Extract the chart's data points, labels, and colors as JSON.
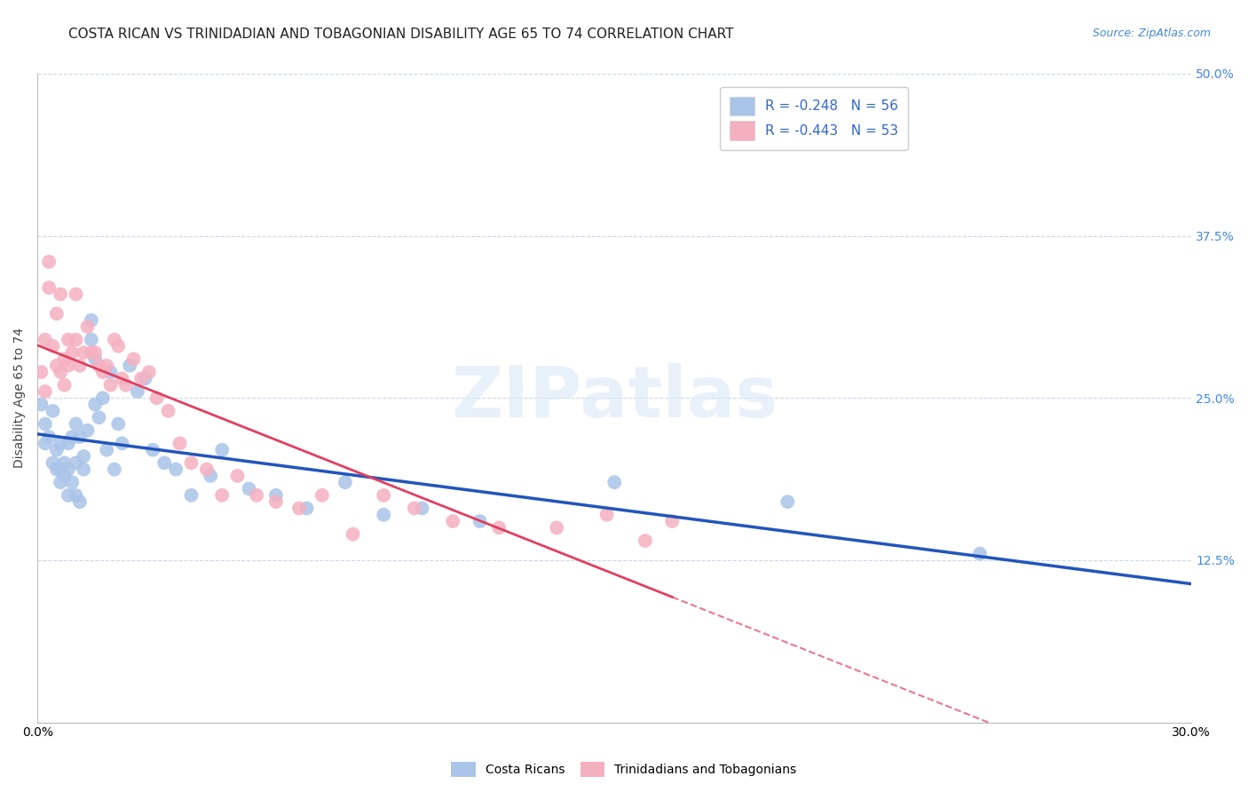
{
  "title": "COSTA RICAN VS TRINIDADIAN AND TOBAGONIAN DISABILITY AGE 65 TO 74 CORRELATION CHART",
  "source": "Source: ZipAtlas.com",
  "ylabel": "Disability Age 65 to 74",
  "xlim": [
    0.0,
    0.3
  ],
  "ylim": [
    0.0,
    0.5
  ],
  "xticks": [
    0.0,
    0.05,
    0.1,
    0.15,
    0.2,
    0.25,
    0.3
  ],
  "xticklabels": [
    "0.0%",
    "",
    "",
    "",
    "",
    "",
    "30.0%"
  ],
  "yticks": [
    0.0,
    0.125,
    0.25,
    0.375,
    0.5
  ],
  "yticklabels_right": [
    "",
    "12.5%",
    "25.0%",
    "37.5%",
    "50.0%"
  ],
  "watermark": "ZIPatlas",
  "legend_r_blue": "R = -0.248",
  "legend_n_blue": "N = 56",
  "legend_r_pink": "R = -0.443",
  "legend_n_pink": "N = 53",
  "legend_label_blue": "Costa Ricans",
  "legend_label_pink": "Trinidadians and Tobagonians",
  "blue_color": "#aac4e8",
  "pink_color": "#f5b0c0",
  "blue_line_color": "#2255bb",
  "pink_line_color": "#e04060",
  "title_fontsize": 11,
  "axis_label_fontsize": 10,
  "tick_fontsize": 10,
  "costa_rican_x": [
    0.001,
    0.002,
    0.002,
    0.003,
    0.004,
    0.004,
    0.005,
    0.005,
    0.006,
    0.006,
    0.006,
    0.007,
    0.007,
    0.008,
    0.008,
    0.008,
    0.009,
    0.009,
    0.01,
    0.01,
    0.01,
    0.011,
    0.011,
    0.012,
    0.012,
    0.013,
    0.014,
    0.014,
    0.015,
    0.015,
    0.016,
    0.017,
    0.018,
    0.019,
    0.02,
    0.021,
    0.022,
    0.024,
    0.026,
    0.028,
    0.03,
    0.033,
    0.036,
    0.04,
    0.045,
    0.048,
    0.055,
    0.062,
    0.07,
    0.08,
    0.09,
    0.1,
    0.115,
    0.15,
    0.195,
    0.245
  ],
  "costa_rican_y": [
    0.245,
    0.23,
    0.215,
    0.22,
    0.24,
    0.2,
    0.195,
    0.21,
    0.195,
    0.215,
    0.185,
    0.19,
    0.2,
    0.195,
    0.175,
    0.215,
    0.185,
    0.22,
    0.23,
    0.2,
    0.175,
    0.17,
    0.22,
    0.195,
    0.205,
    0.225,
    0.31,
    0.295,
    0.28,
    0.245,
    0.235,
    0.25,
    0.21,
    0.27,
    0.195,
    0.23,
    0.215,
    0.275,
    0.255,
    0.265,
    0.21,
    0.2,
    0.195,
    0.175,
    0.19,
    0.21,
    0.18,
    0.175,
    0.165,
    0.185,
    0.16,
    0.165,
    0.155,
    0.185,
    0.17,
    0.13
  ],
  "trinidadian_x": [
    0.001,
    0.002,
    0.002,
    0.003,
    0.003,
    0.004,
    0.005,
    0.005,
    0.006,
    0.006,
    0.007,
    0.007,
    0.008,
    0.008,
    0.009,
    0.01,
    0.01,
    0.011,
    0.012,
    0.013,
    0.014,
    0.015,
    0.016,
    0.017,
    0.018,
    0.019,
    0.02,
    0.021,
    0.022,
    0.023,
    0.025,
    0.027,
    0.029,
    0.031,
    0.034,
    0.037,
    0.04,
    0.044,
    0.048,
    0.052,
    0.057,
    0.062,
    0.068,
    0.074,
    0.082,
    0.09,
    0.098,
    0.108,
    0.12,
    0.135,
    0.148,
    0.158,
    0.165
  ],
  "trinidadian_y": [
    0.27,
    0.255,
    0.295,
    0.355,
    0.335,
    0.29,
    0.275,
    0.315,
    0.27,
    0.33,
    0.28,
    0.26,
    0.295,
    0.275,
    0.285,
    0.33,
    0.295,
    0.275,
    0.285,
    0.305,
    0.285,
    0.285,
    0.275,
    0.27,
    0.275,
    0.26,
    0.295,
    0.29,
    0.265,
    0.26,
    0.28,
    0.265,
    0.27,
    0.25,
    0.24,
    0.215,
    0.2,
    0.195,
    0.175,
    0.19,
    0.175,
    0.17,
    0.165,
    0.175,
    0.145,
    0.175,
    0.165,
    0.155,
    0.15,
    0.15,
    0.16,
    0.14,
    0.155
  ]
}
